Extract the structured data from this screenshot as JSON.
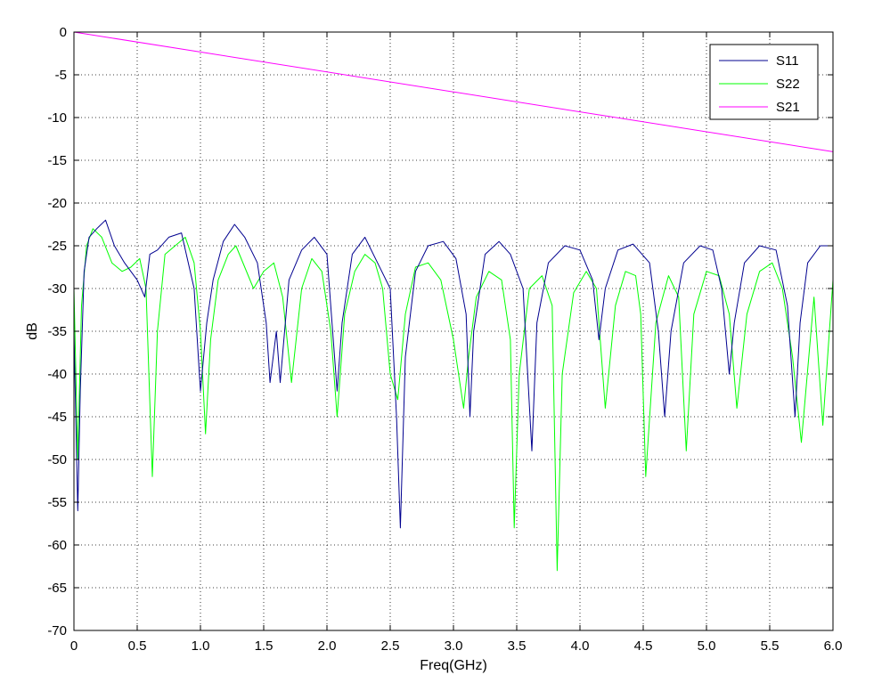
{
  "chart_data": {
    "type": "line",
    "title": "",
    "xlabel": "Freq(GHz)",
    "ylabel": "dB",
    "xlim": [
      0,
      6
    ],
    "ylim": [
      -70,
      0
    ],
    "xticks": [
      0,
      0.5,
      1,
      1.5,
      2,
      2.5,
      3,
      3.5,
      4,
      4.5,
      5,
      5.5,
      6
    ],
    "xtick_labels": [
      "0",
      "0.5",
      "1.0",
      "1.5",
      "2.0",
      "2.5",
      "3.0",
      "3.5",
      "4.0",
      "4.5",
      "5.0",
      "5.5",
      "6.0"
    ],
    "yticks": [
      0,
      -5,
      -10,
      -15,
      -20,
      -25,
      -30,
      -35,
      -40,
      -45,
      -50,
      -55,
      -60,
      -65,
      -70
    ],
    "ytick_labels": [
      "0",
      "-5",
      "-10",
      "-15",
      "-20",
      "-25",
      "-30",
      "-35",
      "-40",
      "-45",
      "-50",
      "-55",
      "-60",
      "-65",
      "-70"
    ],
    "grid": true,
    "grid_style": "dotted",
    "legend_position": "top-right",
    "series": [
      {
        "name": "S11",
        "color": "#00008f",
        "x": [
          0,
          0.03,
          0.05,
          0.08,
          0.12,
          0.18,
          0.25,
          0.32,
          0.4,
          0.5,
          0.56,
          0.6,
          0.66,
          0.75,
          0.85,
          0.95,
          1.0,
          1.05,
          1.1,
          1.18,
          1.27,
          1.35,
          1.45,
          1.52,
          1.55,
          1.6,
          1.63,
          1.7,
          1.8,
          1.9,
          2.0,
          2.05,
          2.08,
          2.12,
          2.2,
          2.3,
          2.4,
          2.5,
          2.55,
          2.58,
          2.62,
          2.7,
          2.8,
          2.92,
          3.02,
          3.1,
          3.13,
          3.16,
          3.25,
          3.36,
          3.45,
          3.55,
          3.62,
          3.66,
          3.75,
          3.88,
          4.0,
          4.1,
          4.15,
          4.2,
          4.3,
          4.42,
          4.55,
          4.62,
          4.67,
          4.72,
          4.82,
          4.95,
          5.05,
          5.12,
          5.18,
          5.22,
          5.3,
          5.42,
          5.55,
          5.64,
          5.7,
          5.74,
          5.8,
          5.9,
          6.0
        ],
        "y": [
          -35,
          -56,
          -42,
          -28,
          -24,
          -23,
          -22,
          -25,
          -27,
          -29,
          -31,
          -26,
          -25.5,
          -24,
          -23.5,
          -30,
          -42,
          -34,
          -29,
          -24.5,
          -22.5,
          -24,
          -27,
          -34,
          -41,
          -35,
          -41,
          -29,
          -25.5,
          -24,
          -26,
          -36,
          -42,
          -34,
          -26,
          -24,
          -27,
          -30,
          -45,
          -58,
          -38,
          -28,
          -25,
          -24.5,
          -26.5,
          -33,
          -45,
          -35,
          -26,
          -24.5,
          -26,
          -30,
          -49,
          -34,
          -27,
          -25,
          -25.5,
          -29,
          -36,
          -30,
          -25.5,
          -24.8,
          -27,
          -35,
          -45,
          -35,
          -27,
          -25,
          -25.5,
          -30,
          -40,
          -34,
          -27,
          -25,
          -25.5,
          -32,
          -45,
          -34,
          -27,
          -25,
          -25
        ]
      },
      {
        "name": "S22",
        "color": "#00ff00",
        "x": [
          0,
          0.03,
          0.06,
          0.1,
          0.15,
          0.22,
          0.3,
          0.38,
          0.45,
          0.52,
          0.57,
          0.62,
          0.66,
          0.72,
          0.8,
          0.88,
          0.95,
          1.0,
          1.04,
          1.08,
          1.14,
          1.22,
          1.28,
          1.35,
          1.42,
          1.5,
          1.58,
          1.65,
          1.72,
          1.8,
          1.88,
          1.96,
          2.03,
          2.08,
          2.14,
          2.22,
          2.3,
          2.38,
          2.44,
          2.5,
          2.56,
          2.62,
          2.7,
          2.8,
          2.9,
          3.0,
          3.08,
          3.12,
          3.18,
          3.28,
          3.38,
          3.45,
          3.48,
          3.52,
          3.6,
          3.7,
          3.78,
          3.82,
          3.86,
          3.95,
          4.05,
          4.13,
          4.2,
          4.28,
          4.36,
          4.44,
          4.48,
          4.52,
          4.6,
          4.7,
          4.78,
          4.84,
          4.9,
          5.0,
          5.1,
          5.18,
          5.24,
          5.32,
          5.42,
          5.52,
          5.6,
          5.68,
          5.75,
          5.85,
          5.92,
          6.0
        ],
        "y": [
          -30,
          -50,
          -32,
          -25,
          -23,
          -24,
          -27,
          -28,
          -27.5,
          -26.5,
          -30,
          -52,
          -35,
          -26,
          -25,
          -24,
          -27,
          -35,
          -47,
          -36,
          -29,
          -26,
          -25,
          -27.5,
          -30,
          -28,
          -27,
          -31,
          -41,
          -30,
          -26.5,
          -28,
          -35,
          -45,
          -33,
          -28,
          -26,
          -27,
          -30,
          -40,
          -43,
          -33,
          -27.5,
          -27,
          -29,
          -36,
          -44,
          -38,
          -31,
          -28,
          -29,
          -36,
          -58,
          -40,
          -30,
          -28.5,
          -32,
          -63,
          -40,
          -30.5,
          -28,
          -30,
          -44,
          -32,
          -28,
          -28.5,
          -33,
          -52,
          -34,
          -28.5,
          -31,
          -49,
          -33,
          -28,
          -28.5,
          -33,
          -44,
          -33,
          -28,
          -27,
          -30,
          -38,
          -48,
          -31,
          -46,
          -29
        ]
      },
      {
        "name": "S21",
        "color": "#ff00ff",
        "x": [
          0,
          6
        ],
        "y": [
          0,
          -14
        ]
      }
    ]
  }
}
